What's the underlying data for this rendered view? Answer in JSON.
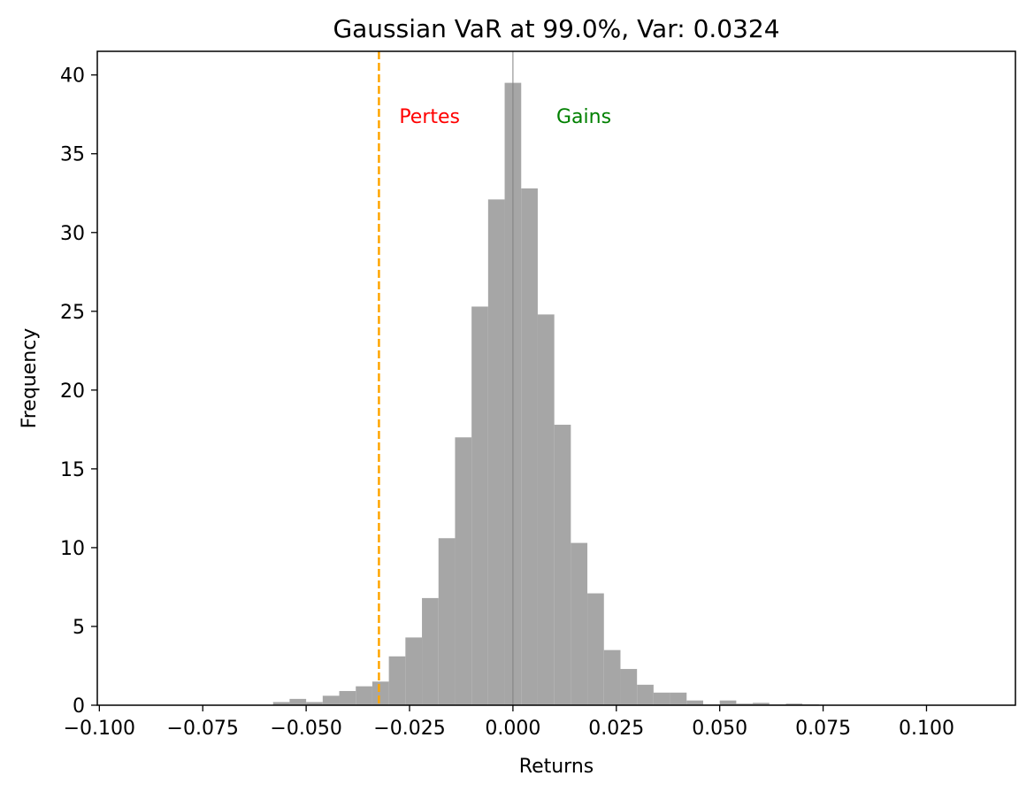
{
  "chart_data": {
    "type": "bar",
    "title": "Gaussian VaR at 99.0%, Var: 0.0324",
    "xlabel": "Returns",
    "ylabel": "Frequency",
    "xlim": [
      -0.1005,
      0.1215
    ],
    "ylim": [
      0,
      41.5
    ],
    "grid": false,
    "legend": "none",
    "bin_width": 0.004,
    "bin_lefts": [
      -0.058,
      -0.054,
      -0.05,
      -0.046,
      -0.042,
      -0.038,
      -0.034,
      -0.03,
      -0.026,
      -0.022,
      -0.018,
      -0.014,
      -0.01,
      -0.006,
      -0.002,
      0.002,
      0.006,
      0.01,
      0.014,
      0.018,
      0.022,
      0.026,
      0.03,
      0.034,
      0.038,
      0.042,
      0.046,
      0.05,
      0.054,
      0.058,
      0.062,
      0.066,
      0.07
    ],
    "values": [
      0.2,
      0.4,
      0.2,
      0.6,
      0.9,
      1.2,
      1.5,
      3.1,
      4.3,
      6.8,
      10.6,
      17.0,
      25.3,
      32.1,
      39.5,
      32.8,
      24.8,
      17.8,
      10.3,
      7.1,
      3.5,
      2.3,
      1.3,
      0.8,
      0.8,
      0.3,
      0.05,
      0.3,
      0.1,
      0.15,
      0.05,
      0.1,
      0.05
    ],
    "bar_color": "#a6a6a6",
    "var_line": {
      "x": -0.0324,
      "color": "#ffa500",
      "style": "dashed"
    },
    "zero_line": {
      "x": 0.0,
      "color": "#808080"
    },
    "annotations": [
      {
        "text": "Pertes",
        "x": -0.0275,
        "y": 37.4,
        "color": "#ff0000"
      },
      {
        "text": "Gains",
        "x": 0.0105,
        "y": 37.4,
        "color": "#008000"
      }
    ],
    "x_ticks": [
      -0.1,
      -0.075,
      -0.05,
      -0.025,
      0.0,
      0.025,
      0.05,
      0.075,
      0.1
    ],
    "x_tick_labels": [
      "−0.100",
      "−0.075",
      "−0.050",
      "−0.025",
      "0.000",
      "0.025",
      "0.050",
      "0.075",
      "0.100"
    ],
    "y_ticks": [
      0,
      5,
      10,
      15,
      20,
      25,
      30,
      35,
      40
    ],
    "y_tick_labels": [
      "0",
      "5",
      "10",
      "15",
      "20",
      "25",
      "30",
      "35",
      "40"
    ]
  }
}
